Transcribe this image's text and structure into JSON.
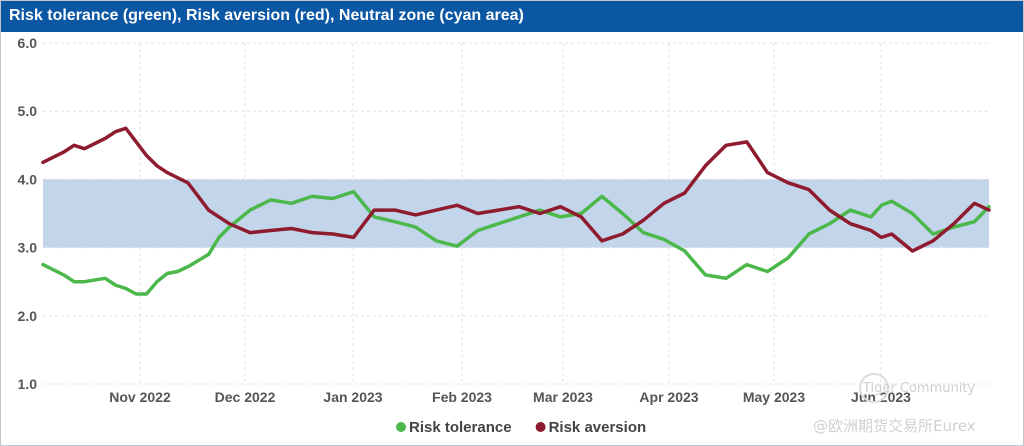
{
  "chart_data": {
    "type": "line",
    "title": "Risk tolerance (green), Risk aversion (red), Neutral zone (cyan area)",
    "xlabel": "",
    "ylabel": "",
    "ylim": [
      1.0,
      6.0
    ],
    "yticks": [
      "1.0",
      "2.0",
      "3.0",
      "4.0",
      "5.0",
      "6.0"
    ],
    "xticks": [
      "Nov 2022",
      "Dec 2022",
      "Jan 2023",
      "Feb 2023",
      "Mar 2023",
      "Apr 2023",
      "May 2023",
      "Jun 2023"
    ],
    "xlim": [
      0,
      45.7
    ],
    "neutral_zone": [
      3.0,
      4.0
    ],
    "legend": {
      "position": "bottom"
    },
    "series": [
      {
        "name": "Risk tolerance",
        "color": "#4cb84c",
        "x": [
          0,
          1,
          1.5,
          2,
          3,
          3.5,
          4,
          4.5,
          5,
          5.5,
          6,
          6.5,
          7,
          8,
          8.5,
          9,
          10,
          11,
          12,
          13,
          14,
          15,
          16,
          17,
          18,
          19,
          20,
          21,
          22,
          23,
          24,
          25,
          26,
          27,
          28,
          29,
          30,
          31,
          32,
          33,
          34,
          35,
          36,
          37,
          38,
          39,
          40,
          40.5,
          41,
          42,
          43,
          44,
          45,
          45.7
        ],
        "values": [
          2.75,
          2.6,
          2.5,
          2.5,
          2.55,
          2.45,
          2.4,
          2.32,
          2.32,
          2.5,
          2.62,
          2.65,
          2.72,
          2.9,
          3.15,
          3.3,
          3.55,
          3.7,
          3.65,
          3.75,
          3.72,
          3.82,
          3.45,
          3.38,
          3.3,
          3.1,
          3.02,
          3.25,
          3.35,
          3.45,
          3.55,
          3.45,
          3.5,
          3.75,
          3.5,
          3.22,
          3.12,
          2.95,
          2.6,
          2.55,
          2.75,
          2.65,
          2.85,
          3.2,
          3.35,
          3.55,
          3.45,
          3.62,
          3.68,
          3.5,
          3.2,
          3.3,
          3.38,
          3.6
        ]
      },
      {
        "name": "Risk aversion",
        "color": "#8e1b2e",
        "x": [
          0,
          1,
          1.5,
          2,
          3,
          3.5,
          4,
          4.5,
          5,
          5.5,
          6,
          7,
          7.5,
          8,
          9,
          10,
          11,
          12,
          13,
          14,
          15,
          16,
          17,
          18,
          19,
          20,
          21,
          22,
          23,
          24,
          25,
          26,
          27,
          28,
          29,
          30,
          31,
          32,
          33,
          34,
          35,
          36,
          37,
          38,
          39,
          40,
          40.5,
          41,
          42,
          43,
          44,
          45,
          45.7
        ],
        "values": [
          4.25,
          4.4,
          4.5,
          4.45,
          4.6,
          4.7,
          4.75,
          4.55,
          4.35,
          4.2,
          4.1,
          3.95,
          3.75,
          3.55,
          3.35,
          3.22,
          3.25,
          3.28,
          3.22,
          3.2,
          3.15,
          3.55,
          3.55,
          3.48,
          3.55,
          3.62,
          3.5,
          3.55,
          3.6,
          3.5,
          3.6,
          3.45,
          3.1,
          3.2,
          3.4,
          3.65,
          3.8,
          4.2,
          4.5,
          4.55,
          4.1,
          3.95,
          3.85,
          3.55,
          3.35,
          3.25,
          3.15,
          3.2,
          2.95,
          3.1,
          3.35,
          3.65,
          3.55
        ]
      }
    ]
  },
  "watermark": {
    "line1": "Tiger Community",
    "line2": "@欧洲期货交易所Eurex"
  }
}
